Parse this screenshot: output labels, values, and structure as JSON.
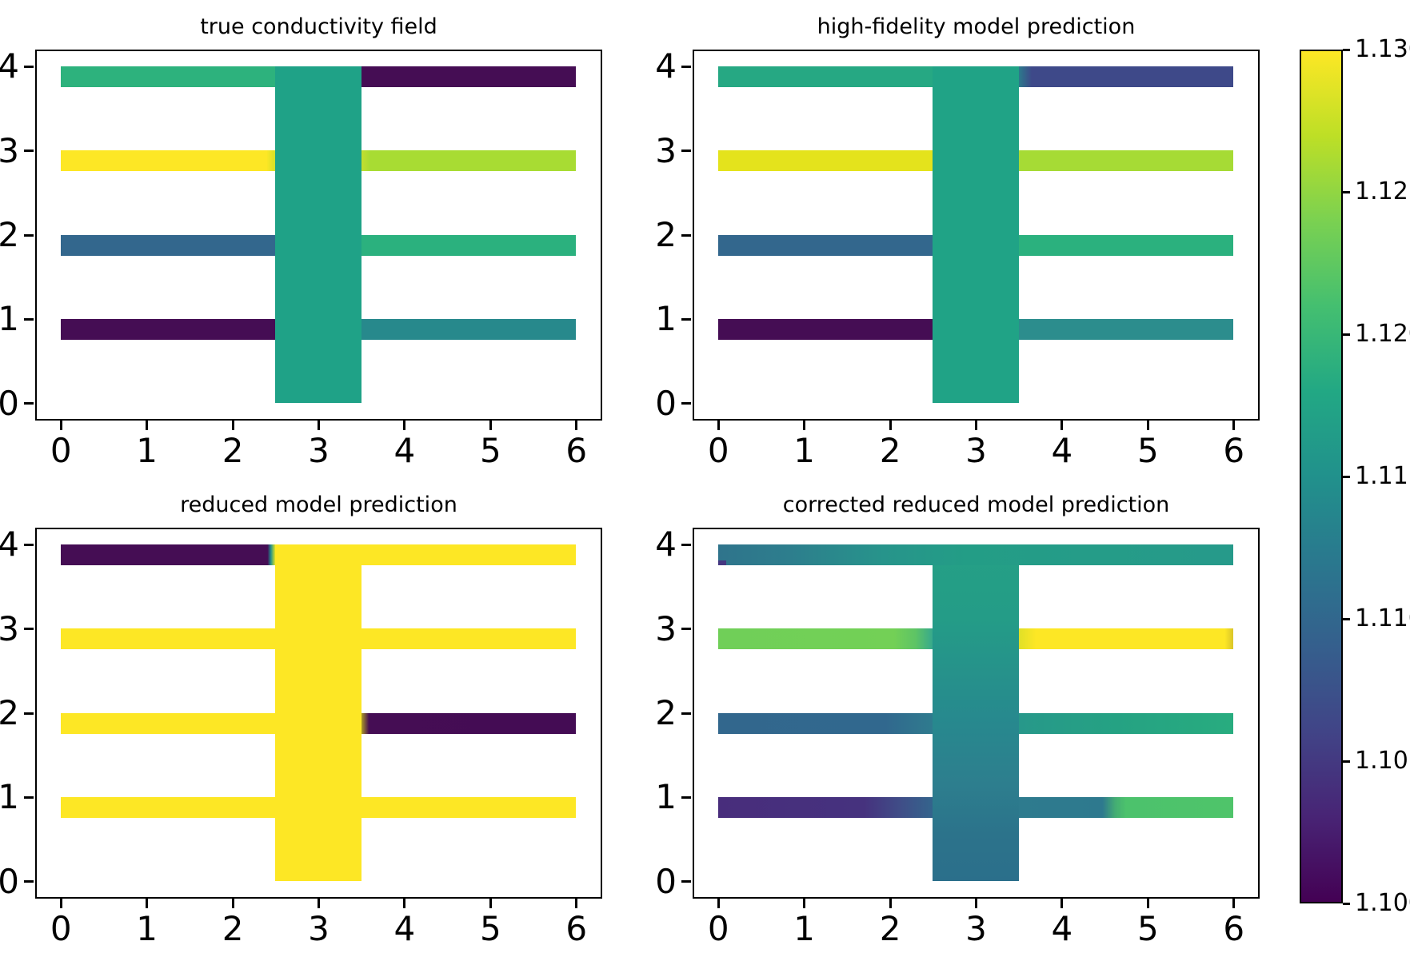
{
  "figure": {
    "background": "#ffffff",
    "spine_color": "#000000",
    "text_color": "#000000"
  },
  "chart_data": {
    "type": "heatmap",
    "colormap": "viridis",
    "vmin": 1.1,
    "vmax": 1.13,
    "grid": false,
    "geometry_note": "each panel: vertical channel x=[2.5,3.5] y=[0,4]; horizontal channels y=[k-0.25,k] for k=1..4, split into left x=[0,2.5] and right x=[3.5,6] segments",
    "xticks": [
      "0",
      "1",
      "2",
      "3",
      "4",
      "5",
      "6"
    ],
    "yticks": [
      "4",
      "3",
      "2",
      "1",
      "0"
    ],
    "xlim": [
      -0.3,
      6.3
    ],
    "ylim": [
      -0.2,
      4.2
    ],
    "subplots": [
      {
        "title": "true conductivity field",
        "segments": [
          {
            "name": "vertical-channel",
            "x": [
              2.5,
              3.5
            ],
            "y": [
              0,
              4
            ],
            "value": 1.1175,
            "bg": "#1fa287"
          },
          {
            "name": "y4-left",
            "x": [
              0,
              2.5
            ],
            "y": [
              3.75,
              4
            ],
            "value": 1.1205,
            "bg": "#2db27d"
          },
          {
            "name": "y4-right",
            "x": [
              3.5,
              6
            ],
            "y": [
              3.75,
              4
            ],
            "value": 1.1,
            "bg": "#450d54"
          },
          {
            "name": "y3-left",
            "x": [
              0,
              2.5
            ],
            "y": [
              2.75,
              3
            ],
            "value": 1.13,
            "bg": "linear-gradient(90deg,#fde725 0%,#fde725 96%,#d4e028 100%)"
          },
          {
            "name": "y3-right",
            "x": [
              3.5,
              6
            ],
            "y": [
              2.75,
              3
            ],
            "value": 1.1245,
            "bg": "linear-gradient(90deg,#c3de2f 0%,#a8dc33 4%,#a8dc33 100%)"
          },
          {
            "name": "y2-left",
            "x": [
              0,
              2.5
            ],
            "y": [
              1.75,
              2
            ],
            "value": 1.109,
            "bg": "#33678d"
          },
          {
            "name": "y2-right",
            "x": [
              3.5,
              6
            ],
            "y": [
              1.75,
              2
            ],
            "value": 1.1205,
            "bg": "#2bb17e"
          },
          {
            "name": "y1-left",
            "x": [
              0,
              2.5
            ],
            "y": [
              0.75,
              1
            ],
            "value": 1.1,
            "bg": "#450d54"
          },
          {
            "name": "y1-right",
            "x": [
              3.5,
              6
            ],
            "y": [
              0.75,
              1
            ],
            "value": 1.1135,
            "bg": "#27898c"
          }
        ]
      },
      {
        "title": "high-fidelity model prediction",
        "segments": [
          {
            "name": "vertical-channel",
            "x": [
              2.5,
              3.5
            ],
            "y": [
              0,
              4
            ],
            "value": 1.1175,
            "bg": "#20a386"
          },
          {
            "name": "y4-left",
            "x": [
              0,
              2.5
            ],
            "y": [
              3.75,
              4
            ],
            "value": 1.119,
            "bg": "#26a883"
          },
          {
            "name": "y4-right",
            "x": [
              3.5,
              6
            ],
            "y": [
              3.75,
              4
            ],
            "value": 1.106,
            "bg": "linear-gradient(90deg,#2c7a8c 0%,#3e4989 6%,#3e4989 100%)"
          },
          {
            "name": "y3-left",
            "x": [
              0,
              2.5
            ],
            "y": [
              2.75,
              3
            ],
            "value": 1.129,
            "bg": "#e4e31c"
          },
          {
            "name": "y3-right",
            "x": [
              3.5,
              6
            ],
            "y": [
              2.75,
              3
            ],
            "value": 1.1245,
            "bg": "#a6db35"
          },
          {
            "name": "y2-left",
            "x": [
              0,
              2.5
            ],
            "y": [
              1.75,
              2
            ],
            "value": 1.109,
            "bg": "#33678d"
          },
          {
            "name": "y2-right",
            "x": [
              3.5,
              6
            ],
            "y": [
              1.75,
              2
            ],
            "value": 1.1205,
            "bg": "#2bb17e"
          },
          {
            "name": "y1-left",
            "x": [
              0,
              2.5
            ],
            "y": [
              0.75,
              1
            ],
            "value": 1.1,
            "bg": "#450d54"
          },
          {
            "name": "y1-right",
            "x": [
              3.5,
              6
            ],
            "y": [
              0.75,
              1
            ],
            "value": 1.114,
            "bg": "#2c8d8d"
          }
        ]
      },
      {
        "title": "reduced model prediction",
        "segments": [
          {
            "name": "vertical-channel",
            "x": [
              2.5,
              3.5
            ],
            "y": [
              0,
              4
            ],
            "value": 1.13,
            "bg": "#fde725"
          },
          {
            "name": "y4-left",
            "x": [
              0,
              2.5
            ],
            "y": [
              3.75,
              4
            ],
            "value": 1.1,
            "bg": "linear-gradient(90deg,#450d54 0%,#450d54 96.5%,#21918c 98%,#dde224 100%)"
          },
          {
            "name": "y4-right",
            "x": [
              3.5,
              6
            ],
            "y": [
              3.75,
              4
            ],
            "value": 1.13,
            "bg": "#fde725"
          },
          {
            "name": "y3-full",
            "x": [
              0,
              6
            ],
            "y": [
              2.75,
              3
            ],
            "value": 1.13,
            "bg": "#fde725"
          },
          {
            "name": "y2-left",
            "x": [
              0,
              2.5
            ],
            "y": [
              1.75,
              2
            ],
            "value": 1.13,
            "bg": "#fde725"
          },
          {
            "name": "y2-right",
            "x": [
              3.5,
              6
            ],
            "y": [
              1.75,
              2
            ],
            "value": 1.1,
            "bg": "linear-gradient(90deg,#ad9b24 0%,#450d54 3.5%,#440c54 100%)"
          },
          {
            "name": "y1-full",
            "x": [
              0,
              6
            ],
            "y": [
              0.75,
              1
            ],
            "value": 1.13,
            "bg": "#fde725"
          }
        ]
      },
      {
        "title": "corrected reduced model prediction",
        "segments": [
          {
            "name": "vertical-channel",
            "x": [
              2.5,
              3.5
            ],
            "y": [
              0,
              4
            ],
            "value": 1.114,
            "bg": "linear-gradient(180deg,#25a085 0%,#249c87 22%,#27898e 52%,#2d7f8e 70%,#2c738b 86%,#2b6f8b 100%)"
          },
          {
            "name": "y4-full",
            "x": [
              0,
              6
            ],
            "y": [
              3.75,
              4
            ],
            "value": 1.116,
            "bg": "linear-gradient(90deg,#2f748c 0%,#2d7e8d 14%,#27948b 32%,#239d86 48%,#259c88 72%,#269a8a 100%)"
          },
          {
            "name": "y4-corner-speck",
            "x": [
              0,
              0.1
            ],
            "y": [
              3.75,
              3.81
            ],
            "value": 1.1035,
            "bg": "#453781"
          },
          {
            "name": "y3-left",
            "x": [
              0,
              2.5
            ],
            "y": [
              2.75,
              3
            ],
            "value": 1.1235,
            "bg": "linear-gradient(90deg,#70cf58 0%,#73d056 82%,#5ec465 92%,#37a98c 100%)"
          },
          {
            "name": "y3-right",
            "x": [
              3.5,
              6
            ],
            "y": [
              2.75,
              3
            ],
            "value": 1.13,
            "bg": "linear-gradient(90deg,#e0e027 0%,#fde725 8%,#fde725 96%,#d9c52a 100%)"
          },
          {
            "name": "y2-left",
            "x": [
              0,
              2.5
            ],
            "y": [
              1.75,
              2
            ],
            "value": 1.109,
            "bg": "linear-gradient(90deg,#32678d 0%,#31688e 78%,#2f7b8e 100%)"
          },
          {
            "name": "y2-right",
            "x": [
              3.5,
              6
            ],
            "y": [
              1.75,
              2
            ],
            "value": 1.119,
            "bg": "linear-gradient(90deg,#27988a 0%,#25a283 45%,#28ac7f 100%)"
          },
          {
            "name": "y1-left",
            "x": [
              0,
              2.5
            ],
            "y": [
              0.75,
              1
            ],
            "value": 1.1035,
            "bg": "linear-gradient(90deg,#482d7c 0%,#46327e 68%,#3f4f88 86%,#34648c 100%)"
          },
          {
            "name": "y1-right",
            "x": [
              3.5,
              6
            ],
            "y": [
              0.75,
              1
            ],
            "value": 1.117,
            "bg": "linear-gradient(90deg,#2e7b8e 0%,#2e798e 39%,#44ad73 45%,#4cc26c 50%,#4fc46a 100%)"
          }
        ]
      }
    ],
    "colorbar": {
      "vmin_label": "1.100",
      "vmax_label": "1.130",
      "ticks": [
        "1.130",
        "1.125",
        "1.120",
        "1.115",
        "1.110",
        "1.105",
        "1.100"
      ],
      "gradient_stops": [
        [
          "0%",
          "#fde725"
        ],
        [
          "10%",
          "#bddf26"
        ],
        [
          "20%",
          "#7ad151"
        ],
        [
          "30%",
          "#44bf70"
        ],
        [
          "40%",
          "#22a884"
        ],
        [
          "50%",
          "#21918c"
        ],
        [
          "60%",
          "#2a788e"
        ],
        [
          "70%",
          "#355f8d"
        ],
        [
          "80%",
          "#414487"
        ],
        [
          "90%",
          "#482475"
        ],
        [
          "100%",
          "#440154"
        ]
      ]
    }
  }
}
